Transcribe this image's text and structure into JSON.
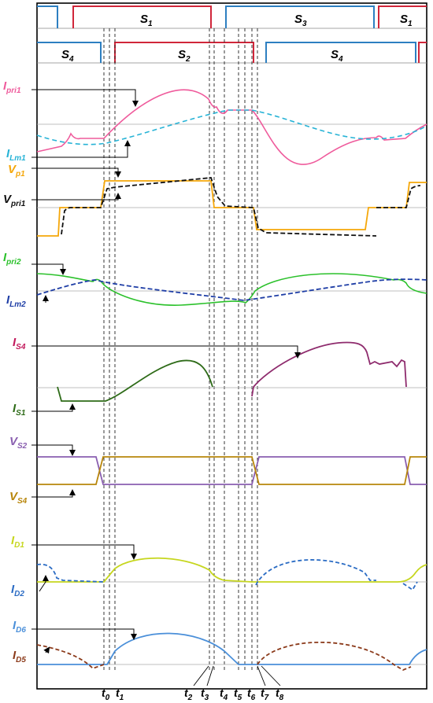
{
  "gates": {
    "top": [
      {
        "label": "",
        "color": "#2d7fc1"
      },
      {
        "label": "S",
        "sub": "1",
        "color": "#d0263a"
      },
      {
        "label": "S",
        "sub": "3",
        "color": "#2d7fc1"
      },
      {
        "label": "S",
        "sub": "1",
        "color": "#d0263a"
      }
    ],
    "bottom": [
      {
        "label": "S",
        "sub": "4",
        "color": "#2d7fc1"
      },
      {
        "label": "S",
        "sub": "2",
        "color": "#d0263a"
      },
      {
        "label": "S",
        "sub": "4",
        "color": "#2d7fc1"
      },
      {
        "label": "",
        "color": "#d0263a"
      }
    ]
  },
  "signals": [
    {
      "name": "Ipri1",
      "label": "I",
      "sub": "pri1",
      "color": "#ef5b9c",
      "style": "solid"
    },
    {
      "name": "ILm1",
      "label": "I",
      "sub": "Lm1",
      "color": "#27b3d6",
      "style": "dashed"
    },
    {
      "name": "Vp1",
      "label": "V",
      "sub": "p1",
      "color": "#f5a70a",
      "style": "solid"
    },
    {
      "name": "Vpri1",
      "label": "V",
      "sub": "pri1",
      "color": "#111111",
      "style": "dashed"
    },
    {
      "name": "Ipri2",
      "label": "I",
      "sub": "pri2",
      "color": "#2bc12b",
      "style": "solid"
    },
    {
      "name": "ILm2",
      "label": "I",
      "sub": "Lm2",
      "color": "#1f3ea6",
      "style": "dashed"
    },
    {
      "name": "IS4",
      "label": "I",
      "sub": "S4",
      "color": "#c2185b",
      "style": "solid"
    },
    {
      "name": "IS1",
      "label": "I",
      "sub": "S1",
      "color": "#2e6b18",
      "style": "solid"
    },
    {
      "name": "VS2",
      "label": "V",
      "sub": "S2",
      "color": "#8a5fb0",
      "style": "solid"
    },
    {
      "name": "VS4",
      "label": "V",
      "sub": "S4",
      "color": "#b8860b",
      "style": "solid"
    },
    {
      "name": "ID1",
      "label": "I",
      "sub": "D1",
      "color": "#c6d61e",
      "style": "solid"
    },
    {
      "name": "ID2",
      "label": "I",
      "sub": "D2",
      "color": "#2b6cc4",
      "style": "dashed"
    },
    {
      "name": "ID6",
      "label": "I",
      "sub": "D6",
      "color": "#4a8fd9",
      "style": "solid"
    },
    {
      "name": "ID5",
      "label": "I",
      "sub": "D5",
      "color": "#8b3a1a",
      "style": "dashed"
    }
  ],
  "time_instants": [
    {
      "label": "t",
      "sub": "0"
    },
    {
      "label": "t",
      "sub": "1"
    },
    {
      "label": "t",
      "sub": "2"
    },
    {
      "label": "t",
      "sub": "3"
    },
    {
      "label": "t",
      "sub": "4"
    },
    {
      "label": "t",
      "sub": "5"
    },
    {
      "label": "t",
      "sub": "6"
    },
    {
      "label": "t",
      "sub": "7"
    },
    {
      "label": "t",
      "sub": "8"
    }
  ]
}
